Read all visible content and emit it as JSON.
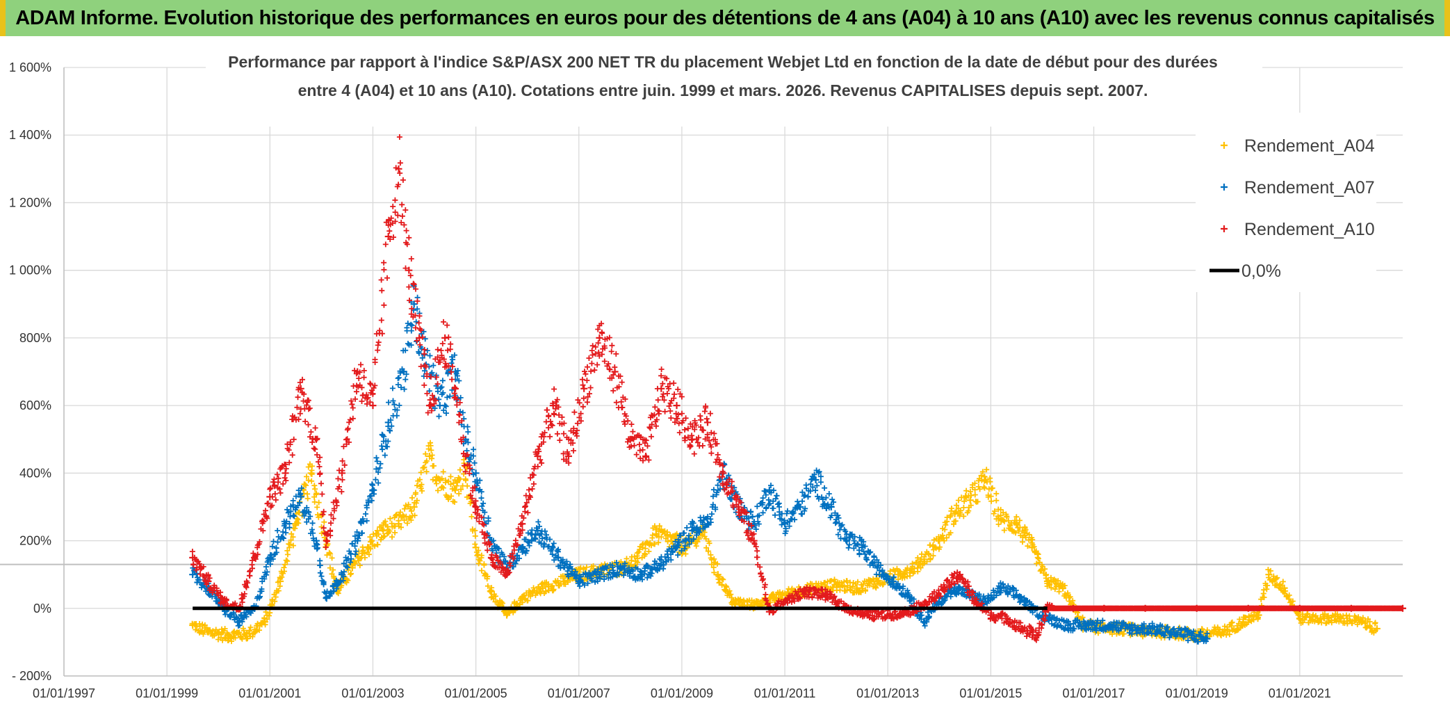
{
  "banner": {
    "title": "ADAM Informe. Evolution historique des performances en euros pour des détentions de 4 ans (A04) à 10 ans (A10) avec les revenus connus capitalisés"
  },
  "chart_data": {
    "type": "scatter",
    "subtitle_line1": "Performance par rapport à l'indice S&P/ASX 200 NET TR  du placement Webjet Ltd en fonction de la date de début pour des durées",
    "subtitle_line2": "entre 4 (A04) et 10 ans (A10). Cotations entre juin. 1999 et mars. 2026. Revenus CAPITALISES depuis sept. 2007.",
    "xlabel": "",
    "ylabel": "",
    "xlim": [
      1997.0,
      2023.0
    ],
    "ylim": [
      -200,
      1600
    ],
    "y_ticks": [
      -200,
      0,
      200,
      400,
      600,
      800,
      1000,
      1200,
      1400,
      1600
    ],
    "y_tick_labels": [
      "- 200%",
      "0%",
      "200%",
      "400%",
      "600%",
      "800%",
      "1 000%",
      "1 200%",
      "1 400%",
      "1 600%"
    ],
    "x_ticks": [
      1997,
      1999,
      2001,
      2003,
      2005,
      2007,
      2009,
      2011,
      2013,
      2015,
      2017,
      2019,
      2021
    ],
    "x_tick_labels": [
      "01/01/1997",
      "01/01/1999",
      "01/01/2001",
      "01/01/2003",
      "01/01/2005",
      "01/01/2007",
      "01/01/2009",
      "01/01/2011",
      "01/01/2013",
      "01/01/2015",
      "01/01/2017",
      "01/01/2019",
      "01/01/2021"
    ],
    "legend_position": "top-right",
    "series": [
      {
        "name": "Rendement_A04",
        "color": "#ffc000",
        "marker": "plus",
        "x": [
          1999.5,
          1999.8,
          2000.2,
          2000.6,
          2000.9,
          2001.2,
          2001.5,
          2001.8,
          2002.1,
          2002.3,
          2002.6,
          2002.9,
          2003.2,
          2003.5,
          2003.8,
          2004.1,
          2004.3,
          2004.6,
          2004.8,
          2005.0,
          2005.3,
          2005.6,
          2005.9,
          2006.3,
          2006.7,
          2007.0,
          2007.4,
          2007.8,
          2008.1,
          2008.5,
          2008.8,
          2009.1,
          2009.4,
          2009.7,
          2010.0,
          2010.4,
          2010.8,
          2011.2,
          2011.6,
          2012.0,
          2012.4,
          2012.8,
          2013.2,
          2013.6,
          2014.0,
          2014.3,
          2014.6,
          2014.9,
          2015.2,
          2015.5,
          2015.8,
          2016.1,
          2016.4,
          2016.8,
          2017.2,
          2017.6,
          2018.0,
          2018.5,
          2019.0,
          2019.5,
          2019.9,
          2020.2,
          2020.4,
          2020.7,
          2021.0,
          2021.4,
          2021.8,
          2022.2,
          2022.5
        ],
        "y": [
          -50,
          -70,
          -80,
          -75,
          -40,
          80,
          250,
          400,
          200,
          50,
          120,
          180,
          230,
          250,
          300,
          450,
          380,
          350,
          420,
          180,
          50,
          -20,
          30,
          60,
          80,
          100,
          110,
          120,
          140,
          220,
          200,
          180,
          230,
          100,
          20,
          10,
          30,
          50,
          60,
          70,
          60,
          80,
          100,
          130,
          200,
          280,
          320,
          380,
          260,
          250,
          180,
          80,
          60,
          -50,
          -60,
          -60,
          -70,
          -70,
          -80,
          -70,
          -40,
          -20,
          100,
          60,
          -30,
          -30,
          -30,
          -40,
          -60
        ]
      },
      {
        "name": "Rendement_A07",
        "color": "#0070c0",
        "marker": "plus",
        "x": [
          1999.5,
          1999.8,
          2000.1,
          2000.4,
          2000.7,
          2001.0,
          2001.3,
          2001.6,
          2001.9,
          2002.1,
          2002.4,
          2002.7,
          2003.0,
          2003.3,
          2003.6,
          2003.8,
          2004.0,
          2004.3,
          2004.6,
          2004.8,
          2005.0,
          2005.3,
          2005.6,
          2005.9,
          2006.2,
          2006.6,
          2007.0,
          2007.4,
          2007.8,
          2008.2,
          2008.6,
          2008.9,
          2009.2,
          2009.5,
          2009.8,
          2010.1,
          2010.4,
          2010.7,
          2011.0,
          2011.3,
          2011.6,
          2011.9,
          2012.2,
          2012.5,
          2012.8,
          2013.1,
          2013.4,
          2013.7,
          2014.0,
          2014.3,
          2014.6,
          2014.9,
          2015.2,
          2015.5,
          2015.8,
          2016.1,
          2016.5,
          2016.9,
          2017.3,
          2017.7,
          2018.1,
          2018.5,
          2018.9,
          2019.2
        ],
        "y": [
          100,
          60,
          0,
          -40,
          0,
          150,
          250,
          330,
          200,
          30,
          100,
          200,
          350,
          550,
          700,
          900,
          750,
          600,
          700,
          500,
          400,
          200,
          120,
          180,
          230,
          150,
          80,
          100,
          120,
          100,
          130,
          180,
          230,
          250,
          400,
          300,
          250,
          350,
          250,
          300,
          380,
          300,
          200,
          180,
          120,
          80,
          40,
          -40,
          20,
          60,
          40,
          20,
          60,
          40,
          0,
          -30,
          -50,
          -50,
          -50,
          -60,
          -60,
          -70,
          -80,
          -90
        ]
      },
      {
        "name": "Rendement_A10",
        "color": "#e31a1c",
        "marker": "plus",
        "x": [
          1999.5,
          1999.8,
          2000.1,
          2000.4,
          2000.7,
          2001.0,
          2001.3,
          2001.6,
          2001.9,
          2002.1,
          2002.4,
          2002.7,
          2003.0,
          2003.3,
          2003.5,
          2003.7,
          2003.9,
          2004.1,
          2004.4,
          2004.6,
          2004.8,
          2005.0,
          2005.3,
          2005.6,
          2005.9,
          2006.2,
          2006.5,
          2006.8,
          2007.1,
          2007.4,
          2007.7,
          2008.0,
          2008.3,
          2008.6,
          2008.9,
          2009.2,
          2009.5,
          2009.8,
          2010.1,
          2010.4,
          2010.7,
          2011.0,
          2011.4,
          2011.8,
          2012.2,
          2012.6,
          2013.0,
          2013.4,
          2013.8,
          2014.1,
          2014.4,
          2014.7,
          2015.0,
          2015.3,
          2015.6,
          2015.9,
          2016.1,
          2016.6,
          2017.2,
          2018.0,
          2019.0,
          2020.0,
          2021.0,
          2022.0,
          2023.0
        ],
        "y": [
          150,
          80,
          20,
          0,
          150,
          330,
          400,
          650,
          500,
          200,
          400,
          700,
          600,
          1100,
          1300,
          1000,
          800,
          600,
          800,
          650,
          450,
          300,
          150,
          100,
          250,
          450,
          600,
          450,
          650,
          800,
          700,
          500,
          450,
          650,
          600,
          500,
          550,
          400,
          300,
          200,
          -10,
          20,
          50,
          40,
          0,
          -20,
          -20,
          -10,
          20,
          60,
          100,
          20,
          -20,
          -30,
          -60,
          -80,
          0,
          0,
          0,
          0,
          0,
          0,
          0,
          0,
          0
        ]
      },
      {
        "name": "0,0%",
        "color": "#000000",
        "marker": "line",
        "x": [
          1999.5,
          2016.1
        ],
        "y": [
          0,
          0
        ]
      }
    ]
  }
}
